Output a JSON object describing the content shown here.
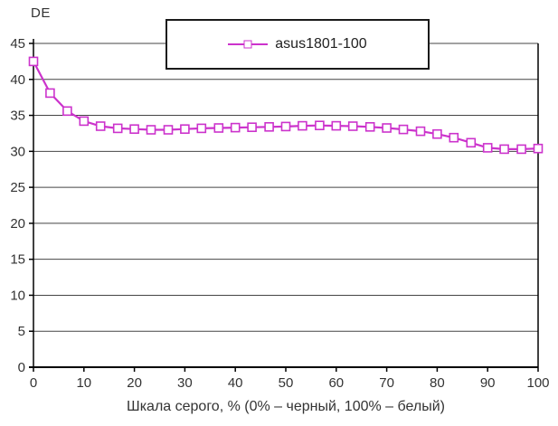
{
  "chart": {
    "y_unit_label": "DE",
    "x_axis_title": "Шкала серого, % (0% – черный, 100% – белый)",
    "legend": {
      "series_label": "asus1801-100"
    },
    "colors": {
      "series": "#CC33CC",
      "text": "#333333",
      "grid": "#444444",
      "axis": "#000000",
      "background": "#FFFFFF"
    }
  },
  "chart_data": {
    "type": "line",
    "title": "DE",
    "xlabel": "Шкала серого, % (0% – черный, 100% – белый)",
    "ylabel": "DE",
    "xlim": [
      0,
      100
    ],
    "ylim": [
      0,
      45
    ],
    "xticks": [
      0,
      10,
      20,
      30,
      40,
      50,
      60,
      70,
      80,
      90,
      100
    ],
    "yticks": [
      0,
      5,
      10,
      15,
      20,
      25,
      30,
      35,
      40,
      45
    ],
    "grid": "horizontal",
    "legend_position": "top-center",
    "series": [
      {
        "name": "asus1801-100",
        "color": "#CC33CC",
        "marker": "open-square",
        "x": [
          0,
          3.3,
          6.7,
          10,
          13.3,
          16.7,
          20,
          23.3,
          26.7,
          30,
          33.3,
          36.7,
          40,
          43.3,
          46.7,
          50,
          53.3,
          56.7,
          60,
          63.3,
          66.7,
          70,
          73.3,
          76.7,
          80,
          83.3,
          86.7,
          90,
          93.3,
          96.7,
          100
        ],
        "y": [
          42.5,
          38.1,
          35.6,
          34.2,
          33.5,
          33.2,
          33.1,
          33.0,
          33.0,
          33.1,
          33.2,
          33.25,
          33.3,
          33.35,
          33.4,
          33.45,
          33.55,
          33.6,
          33.55,
          33.5,
          33.4,
          33.25,
          33.05,
          32.8,
          32.4,
          31.9,
          31.2,
          30.5,
          30.3,
          30.3,
          30.4
        ]
      }
    ]
  }
}
